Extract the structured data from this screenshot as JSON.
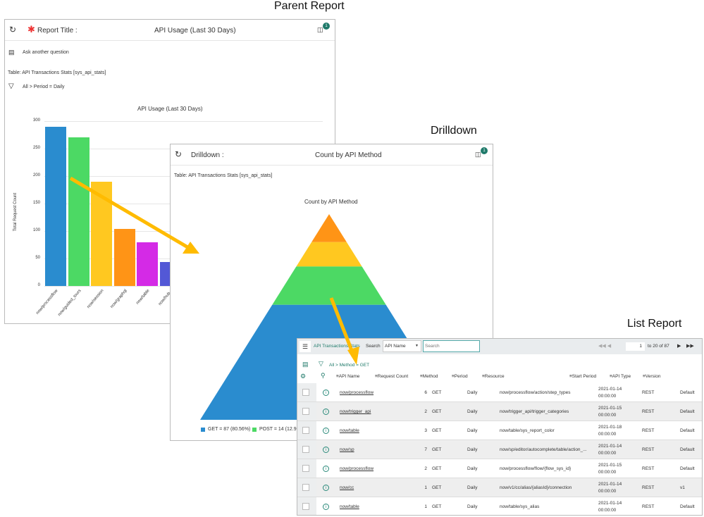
{
  "captions": {
    "parent": "Parent Report",
    "drilldown": "Drilldown",
    "list": "List Report"
  },
  "parent": {
    "title_label": "Report Title :",
    "title": "API Usage (Last 30 Days)",
    "badge": "1",
    "ask": "Ask another question",
    "table": "Table: API Transactions Stats [sys_api_stats]",
    "filter": "All > Period = Daily"
  },
  "chart_data": [
    {
      "type": "bar",
      "title": "API Usage (Last 30 Days)",
      "xlabel": "",
      "ylabel": "Total Request Count",
      "ylim": [
        0,
        300
      ],
      "yticks": [
        0,
        50,
        100,
        150,
        200,
        250,
        300
      ],
      "grid": true,
      "categories": [
        "now/processflow",
        "now/guided_tours",
        "now/session",
        "now/graphql",
        "now/table",
        "now/hub..."
      ],
      "values": [
        290,
        270,
        190,
        104,
        80,
        43
      ],
      "colors": [
        "#2a8ccf",
        "#4cd964",
        "#ffc820",
        "#ff9416",
        "#d42ae6",
        "#5358d6"
      ]
    },
    {
      "type": "pyramid",
      "title": "Count by API Method",
      "series": [
        {
          "name": "GET = 87 (80.56%)",
          "value": 87,
          "color": "#2a8ccf"
        },
        {
          "name": "POST = 14 (12.96%)",
          "value": 14,
          "color": "#4cd964"
        },
        {
          "name": "",
          "value": 5,
          "color": "#ffc820"
        },
        {
          "name": "",
          "value": 2,
          "color": "#ff9416"
        }
      ]
    }
  ],
  "drilldown": {
    "title_label": "Drilldown :",
    "title": "Count by API Method",
    "badge": "1",
    "table": "Table: API Transactions Stats [sys_api_stats]"
  },
  "list": {
    "table_name": "API Transactions Stats",
    "search_label": "Search",
    "search_field": "API Name",
    "search_placeholder": "Search",
    "page": "1",
    "page_info": "to 20 of 87",
    "filter": "All > Method = GET",
    "columns": [
      "API Name",
      "Request Count",
      "Method",
      "Period",
      "Resource",
      "Start Period",
      "API Type",
      "Version"
    ],
    "rows": [
      [
        "now/processflow",
        "6",
        "GET",
        "Daily",
        "now/processflow/action/step_types",
        "2021-01-14",
        "00:00:00",
        "REST",
        "Default"
      ],
      [
        "now/trigger_api",
        "2",
        "GET",
        "Daily",
        "now/trigger_api/trigger_categories",
        "2021-01-15",
        "00:00:00",
        "REST",
        "Default"
      ],
      [
        "now/table",
        "3",
        "GET",
        "Daily",
        "now/table/sys_report_color",
        "2021-01-18",
        "00:00:00",
        "REST",
        "Default"
      ],
      [
        "now/sp",
        "7",
        "GET",
        "Daily",
        "now/sp/editor/autocomplete/table/action_...",
        "2021-01-14",
        "00:00:00",
        "REST",
        "Default"
      ],
      [
        "now/processflow",
        "2",
        "GET",
        "Daily",
        "now/processflow/flow/{flow_sys_id}",
        "2021-01-15",
        "00:00:00",
        "REST",
        "Default"
      ],
      [
        "now/cc",
        "1",
        "GET",
        "Daily",
        "now/v1/cc/alias/{aliasId}/connection",
        "2021-01-14",
        "00:00:00",
        "REST",
        "v1"
      ],
      [
        "now/table",
        "1",
        "GET",
        "Daily",
        "now/table/sys_alias",
        "2021-01-14",
        "00:00:00",
        "REST",
        "Default"
      ]
    ]
  },
  "arrow_color": "#ffbb00"
}
